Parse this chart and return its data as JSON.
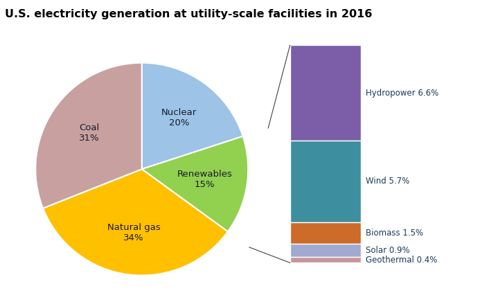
{
  "title": "U.S. electricity generation at utility-scale facilities in 2016",
  "pie_labels": [
    "Nuclear",
    "Renewables",
    "Natural gas",
    "Coal"
  ],
  "pie_values": [
    20,
    15,
    34,
    31
  ],
  "pie_colors": [
    "#9dc3e6",
    "#92d050",
    "#ffc000",
    "#c9a0a0"
  ],
  "renewables_breakdown": {
    "labels": [
      "Hydropower 6.6%",
      "Wind 5.7%",
      "Biomass 1.5%",
      "Solar 0.9%",
      "Geothermal 0.4%"
    ],
    "values": [
      6.6,
      5.7,
      1.5,
      0.9,
      0.4
    ],
    "colors": [
      "#7b5ea7",
      "#3d8fa0",
      "#cc6b2a",
      "#a0aad0",
      "#c8959a"
    ]
  },
  "background_color": "#ffffff",
  "label_color": "#1a3a5c",
  "line_color": "#555555"
}
